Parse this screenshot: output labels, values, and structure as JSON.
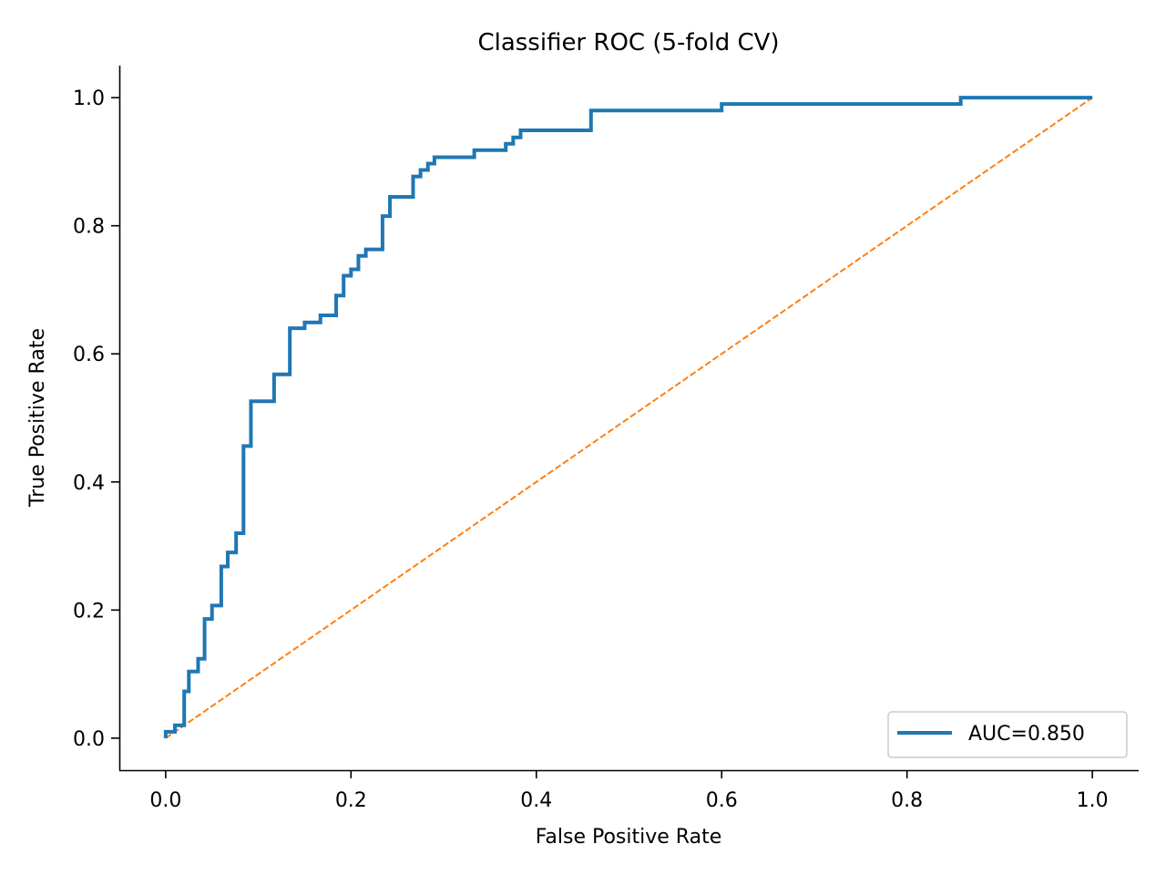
{
  "chart_data": {
    "type": "line",
    "title": "Classifier ROC (5-fold CV)",
    "xlabel": "False Positive Rate",
    "ylabel": "True Positive Rate",
    "xlim": [
      -0.05,
      1.05
    ],
    "ylim": [
      -0.05,
      1.05
    ],
    "xticks": [
      0.0,
      0.2,
      0.4,
      0.6,
      0.8,
      1.0
    ],
    "yticks": [
      0.0,
      0.2,
      0.4,
      0.6,
      0.8,
      1.0
    ],
    "xtick_labels": [
      "0.0",
      "0.2",
      "0.4",
      "0.6",
      "0.8",
      "1.0"
    ],
    "ytick_labels": [
      "0.0",
      "0.2",
      "0.4",
      "0.6",
      "0.8",
      "1.0"
    ],
    "grid": false,
    "legend_position": "lower right",
    "series": [
      {
        "name": "AUC=0.850",
        "color": "#1f77b4",
        "style": "solid",
        "x": [
          0.0,
          0.0,
          0.01,
          0.01,
          0.02,
          0.02,
          0.025,
          0.025,
          0.035,
          0.035,
          0.042,
          0.042,
          0.05,
          0.05,
          0.06,
          0.06,
          0.067,
          0.067,
          0.076,
          0.076,
          0.084,
          0.084,
          0.092,
          0.092,
          0.117,
          0.117,
          0.134,
          0.134,
          0.15,
          0.15,
          0.167,
          0.167,
          0.184,
          0.184,
          0.192,
          0.192,
          0.2,
          0.2,
          0.208,
          0.208,
          0.216,
          0.216,
          0.234,
          0.234,
          0.242,
          0.242,
          0.267,
          0.267,
          0.275,
          0.275,
          0.283,
          0.283,
          0.29,
          0.29,
          0.333,
          0.333,
          0.367,
          0.367,
          0.375,
          0.375,
          0.383,
          0.383,
          0.459,
          0.459,
          0.6,
          0.6,
          0.858,
          0.858,
          1.0
        ],
        "y": [
          0.0,
          0.01,
          0.01,
          0.02,
          0.02,
          0.073,
          0.073,
          0.104,
          0.104,
          0.124,
          0.124,
          0.186,
          0.186,
          0.207,
          0.207,
          0.268,
          0.268,
          0.29,
          0.29,
          0.32,
          0.32,
          0.456,
          0.456,
          0.526,
          0.526,
          0.568,
          0.568,
          0.64,
          0.64,
          0.649,
          0.649,
          0.66,
          0.66,
          0.691,
          0.691,
          0.722,
          0.722,
          0.732,
          0.732,
          0.753,
          0.753,
          0.763,
          0.763,
          0.815,
          0.815,
          0.845,
          0.845,
          0.877,
          0.877,
          0.887,
          0.887,
          0.897,
          0.897,
          0.907,
          0.907,
          0.918,
          0.918,
          0.928,
          0.928,
          0.938,
          0.938,
          0.949,
          0.949,
          0.98,
          0.98,
          0.99,
          0.99,
          1.0,
          1.0
        ]
      },
      {
        "name": "",
        "color": "#ff7f0e",
        "style": "dashed",
        "x": [
          0.0,
          1.0
        ],
        "y": [
          0.0,
          1.0
        ]
      }
    ]
  }
}
